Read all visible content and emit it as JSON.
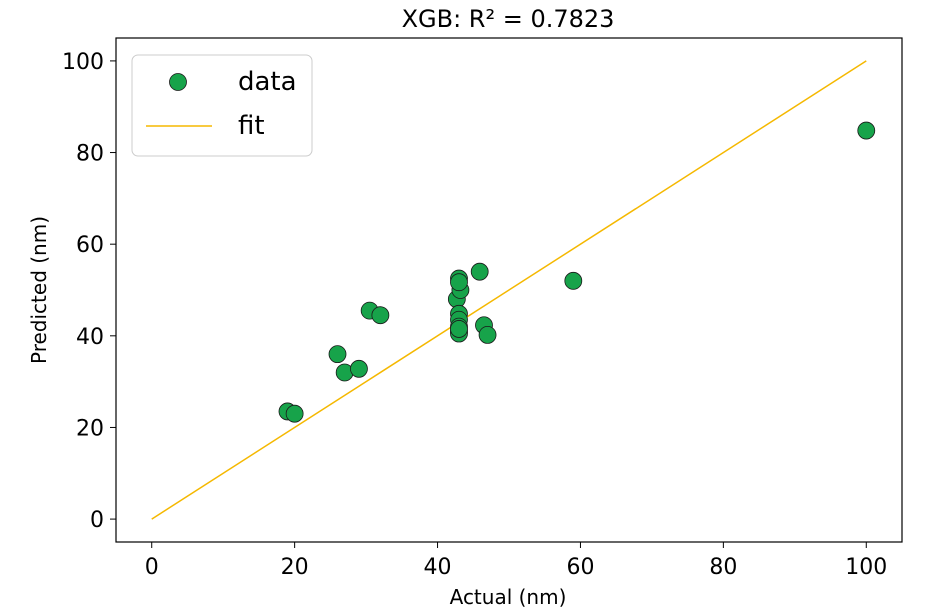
{
  "chart_data": {
    "type": "scatter",
    "title": "XGB: R² = 0.7823",
    "xlabel": "Actual (nm)",
    "ylabel": "Predicted (nm)",
    "xlim": [
      -5,
      105
    ],
    "ylim": [
      -5,
      105
    ],
    "xticks": [
      0,
      20,
      40,
      60,
      80,
      100
    ],
    "yticks": [
      0,
      20,
      40,
      60,
      80,
      100
    ],
    "grid": false,
    "legend_position": "top-left",
    "colors": {
      "data": "#17a34a",
      "fit": "#f5b800",
      "frame": "#000000"
    },
    "series": [
      {
        "name": "data",
        "kind": "scatter",
        "points": [
          [
            19,
            23.5
          ],
          [
            20,
            23
          ],
          [
            26,
            36
          ],
          [
            27,
            32
          ],
          [
            29,
            32.8
          ],
          [
            30.5,
            45.5
          ],
          [
            32,
            44.5
          ],
          [
            42.7,
            48
          ],
          [
            43,
            52.5
          ],
          [
            43.2,
            50
          ],
          [
            43,
            51.7
          ],
          [
            43,
            44.8
          ],
          [
            43,
            43.5
          ],
          [
            43,
            42
          ],
          [
            43,
            41
          ],
          [
            43,
            40.5
          ],
          [
            43,
            41.5
          ],
          [
            45.9,
            54
          ],
          [
            46.5,
            42.3
          ],
          [
            47,
            40.2
          ],
          [
            59,
            52
          ],
          [
            100,
            84.8
          ]
        ]
      },
      {
        "name": "fit",
        "kind": "line",
        "points": [
          [
            0,
            0
          ],
          [
            100,
            100
          ]
        ]
      }
    ]
  }
}
